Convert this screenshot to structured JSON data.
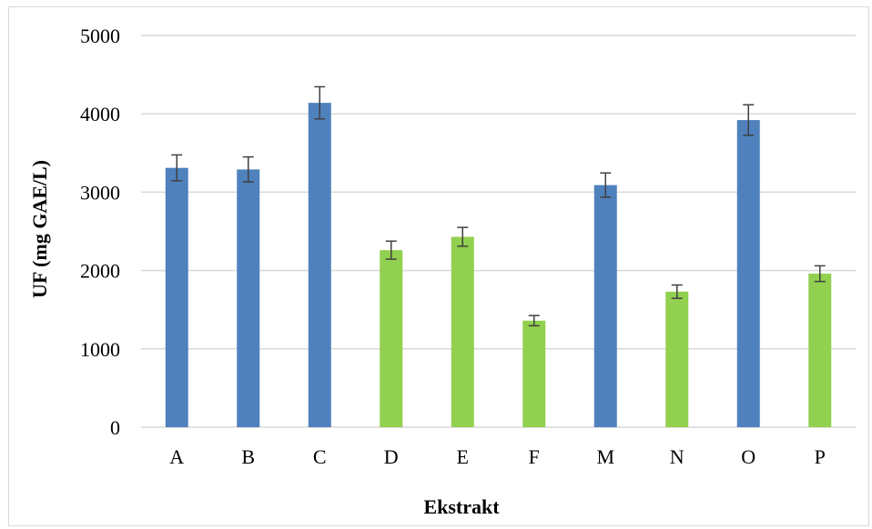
{
  "chart_data": {
    "type": "bar",
    "xlabel": "Ekstrakt",
    "ylabel": "UF (mg GAE/L)",
    "ylim": [
      0,
      5000
    ],
    "yticks": [
      0,
      1000,
      2000,
      3000,
      4000,
      5000
    ],
    "grid": true,
    "categories": [
      "A",
      "B",
      "C",
      "D",
      "E",
      "F",
      "M",
      "N",
      "O",
      "P"
    ],
    "values": [
      3310,
      3290,
      4140,
      2260,
      2430,
      1360,
      3090,
      1730,
      3920,
      1960
    ],
    "errors": [
      165,
      160,
      205,
      115,
      120,
      65,
      155,
      85,
      195,
      100
    ],
    "bar_colors": [
      "#4f81bd",
      "#4f81bd",
      "#4f81bd",
      "#92d050",
      "#92d050",
      "#92d050",
      "#4f81bd",
      "#92d050",
      "#4f81bd",
      "#92d050"
    ],
    "gridline_color": "#d9d9d9",
    "errorbar_color": "#404040"
  }
}
